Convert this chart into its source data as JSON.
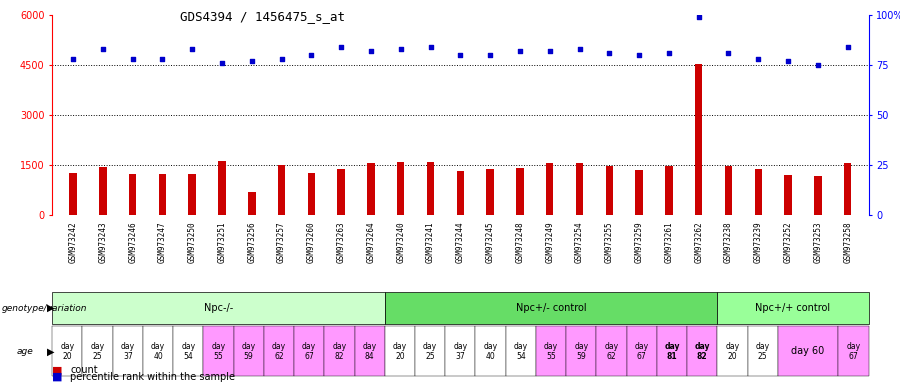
{
  "title": "GDS4394 / 1456475_s_at",
  "samples": [
    "GSM973242",
    "GSM973243",
    "GSM973246",
    "GSM973247",
    "GSM973250",
    "GSM973251",
    "GSM973256",
    "GSM973257",
    "GSM973260",
    "GSM973263",
    "GSM973264",
    "GSM973240",
    "GSM973241",
    "GSM973244",
    "GSM973245",
    "GSM973248",
    "GSM973249",
    "GSM973254",
    "GSM973255",
    "GSM973259",
    "GSM973261",
    "GSM973262",
    "GSM973238",
    "GSM973239",
    "GSM973252",
    "GSM973253",
    "GSM973258"
  ],
  "counts": [
    1270,
    1440,
    1230,
    1230,
    1240,
    1620,
    700,
    1490,
    1250,
    1380,
    1560,
    1580,
    1600,
    1310,
    1370,
    1400,
    1570,
    1550,
    1470,
    1350,
    1460,
    4550,
    1460,
    1380,
    1200,
    1170,
    1550
  ],
  "percentile_ranks": [
    78,
    83,
    78,
    78,
    83,
    76,
    77,
    78,
    80,
    84,
    82,
    83,
    84,
    80,
    80,
    82,
    82,
    83,
    81,
    80,
    81,
    99,
    81,
    78,
    77,
    75,
    84
  ],
  "bar_color": "#cc0000",
  "dot_color": "#0000cc",
  "groups": [
    {
      "label": "Npc-/-",
      "start": 0,
      "end": 10,
      "color": "#ccffcc"
    },
    {
      "label": "Npc+/- control",
      "start": 11,
      "end": 21,
      "color": "#66dd66"
    },
    {
      "label": "Npc+/+ control",
      "start": 22,
      "end": 26,
      "color": "#99ff99"
    }
  ],
  "age_data": [
    {
      "label": "day\n20",
      "color": "white"
    },
    {
      "label": "day\n25",
      "color": "white"
    },
    {
      "label": "day\n37",
      "color": "white"
    },
    {
      "label": "day\n40",
      "color": "white"
    },
    {
      "label": "day\n54",
      "color": "white"
    },
    {
      "label": "day\n55",
      "color": "#ff99ff"
    },
    {
      "label": "day\n59",
      "color": "#ff99ff"
    },
    {
      "label": "day\n62",
      "color": "#ff99ff"
    },
    {
      "label": "day\n67",
      "color": "#ff99ff"
    },
    {
      "label": "day\n82",
      "color": "#ff99ff"
    },
    {
      "label": "day\n84",
      "color": "#ff99ff"
    },
    {
      "label": "day\n20",
      "color": "white"
    },
    {
      "label": "day\n25",
      "color": "white"
    },
    {
      "label": "day\n37",
      "color": "white"
    },
    {
      "label": "day\n40",
      "color": "white"
    },
    {
      "label": "day\n54",
      "color": "white"
    },
    {
      "label": "day\n55",
      "color": "#ff99ff"
    },
    {
      "label": "day\n59",
      "color": "#ff99ff"
    },
    {
      "label": "day\n62",
      "color": "#ff99ff"
    },
    {
      "label": "day\n67",
      "color": "#ff99ff"
    },
    {
      "label": "day\n81",
      "color": "#ff99ff",
      "bold": true
    },
    {
      "label": "day\n82",
      "color": "#ff99ff",
      "bold": true
    },
    {
      "label": "day\n20",
      "color": "white"
    },
    {
      "label": "day\n25",
      "color": "white"
    },
    {
      "label": "day 60",
      "color": "#ff99ff",
      "span": 2
    },
    {
      "label": "day\n67",
      "color": "#ff99ff"
    }
  ],
  "ylim_left": [
    0,
    6000
  ],
  "yticks_left": [
    0,
    1500,
    3000,
    4500,
    6000
  ],
  "yticks_right": [
    0,
    25,
    50,
    75,
    100
  ],
  "dotted_lines": [
    1500,
    3000,
    4500
  ],
  "xlabel_bg": "#d0d0d0"
}
